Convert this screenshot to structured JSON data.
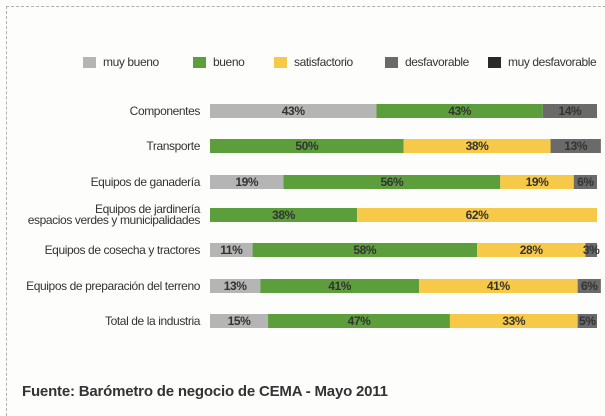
{
  "chart_data": {
    "type": "stacked-bar-horizontal",
    "categories": [
      "Componentes",
      "Transporte",
      "Equipos de ganadería",
      "Equipos de jardinería\nespacios verdes y municipalidades",
      "Equipos de cosecha y tractores",
      "Equipos de preparación del terreno",
      "Total de la industria"
    ],
    "series": [
      {
        "name": "muy bueno",
        "color": "#b5b5b5",
        "values": [
          43,
          null,
          19,
          null,
          11,
          13,
          15
        ],
        "value_labels": [
          "43%",
          null,
          "19%",
          null,
          "11%",
          "13%",
          "15%"
        ]
      },
      {
        "name": "bueno",
        "color": "#5c9e3c",
        "values": [
          43,
          50,
          56,
          38,
          58,
          41,
          47
        ],
        "value_labels": [
          "43%",
          "50%",
          "56%",
          "38%",
          "58%",
          "41%",
          "47%"
        ]
      },
      {
        "name": "satisfactorio",
        "color": "#f7c948",
        "values": [
          null,
          38,
          19,
          62,
          28,
          41,
          33
        ],
        "value_labels": [
          null,
          "38%",
          "19%",
          "62%",
          "28%",
          "41%",
          "33%"
        ]
      },
      {
        "name": "desfavorable",
        "color": "#6a6a6a",
        "values": [
          14,
          13,
          6,
          null,
          3,
          6,
          5
        ],
        "value_labels": [
          "14%",
          "13%",
          "6%",
          null,
          "3%",
          "6%",
          "5%"
        ]
      },
      {
        "name": "muy desfavorable",
        "color": "#2a2a2a",
        "values": [
          null,
          null,
          null,
          null,
          null,
          null,
          null
        ],
        "value_labels": [
          null,
          null,
          null,
          null,
          null,
          null,
          null
        ]
      }
    ],
    "xlim": [
      0,
      100
    ],
    "legend": "top",
    "source": "Fuente: Barómetro de negocio de CEMA - Mayo 2011"
  }
}
